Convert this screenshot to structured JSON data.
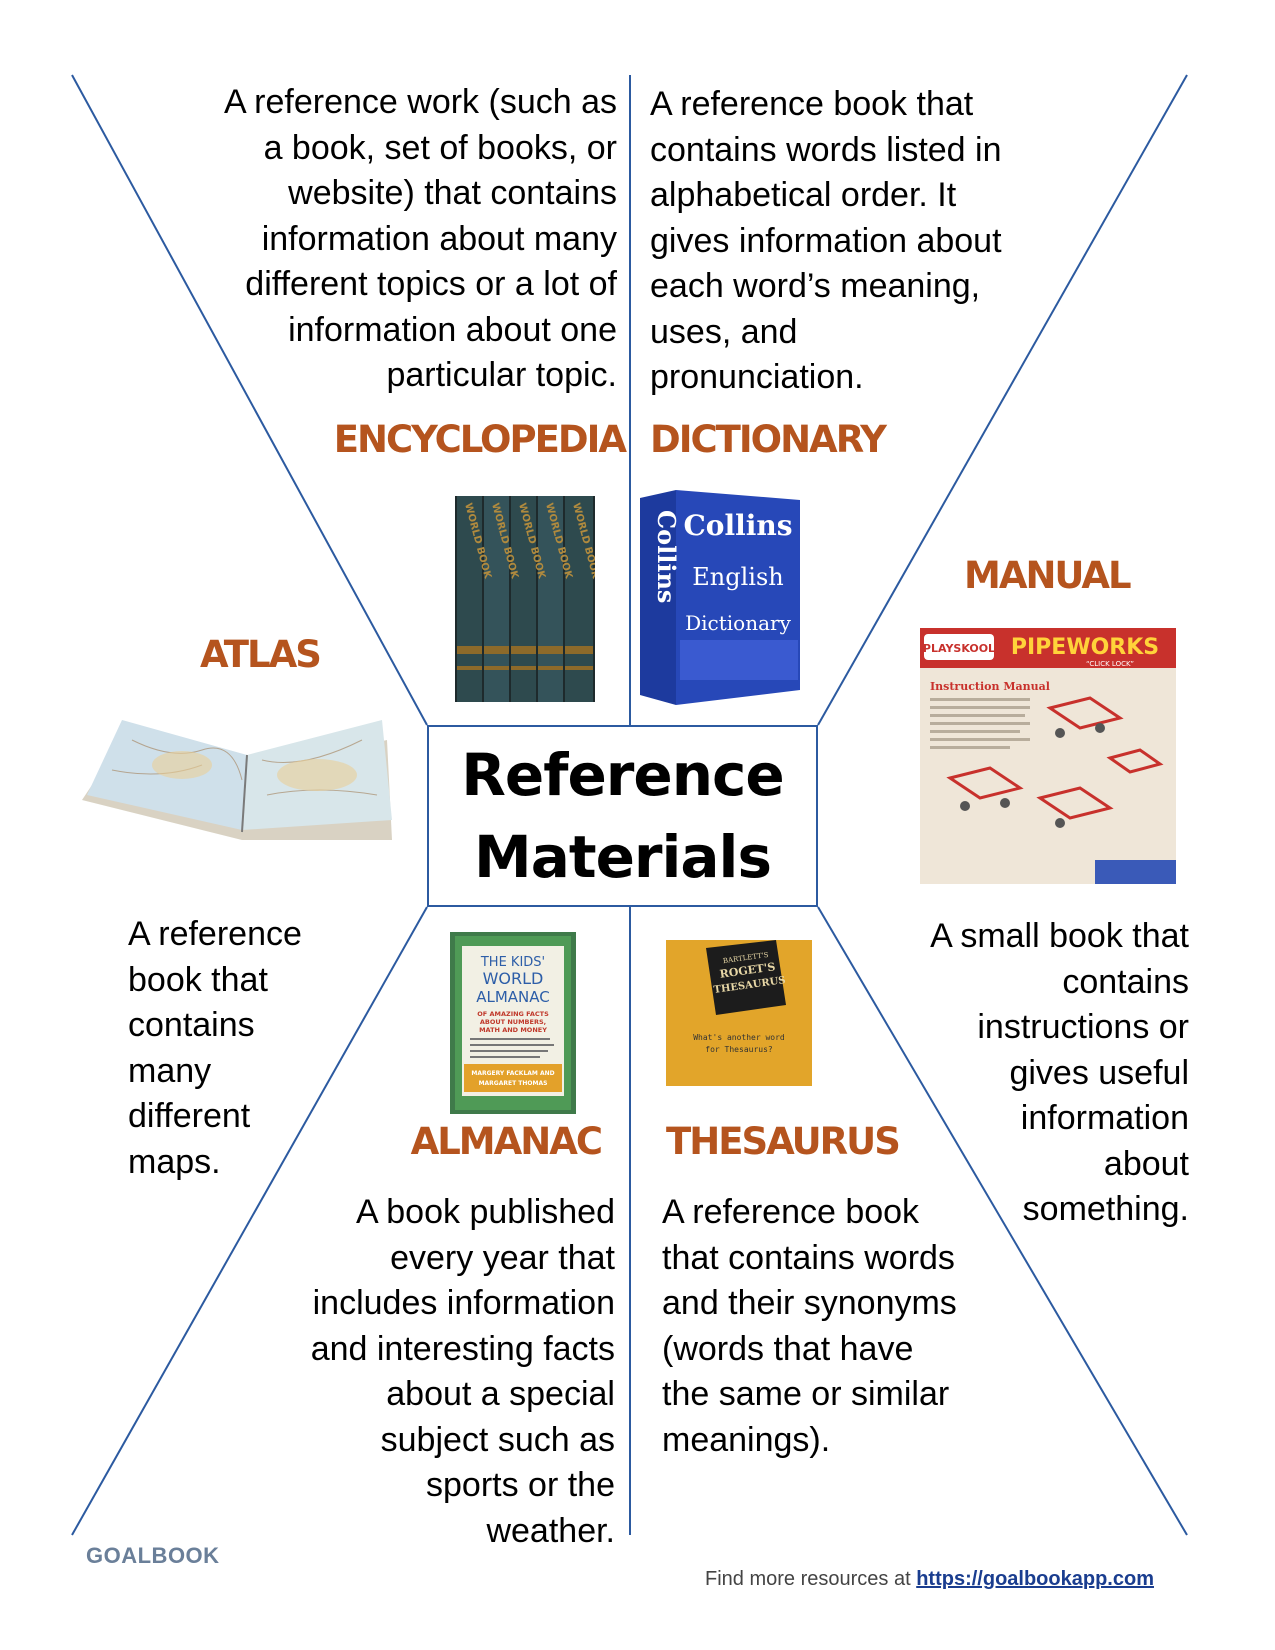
{
  "center": {
    "line1": "Reference",
    "line2": "Materials"
  },
  "sections": {
    "encyclopedia": {
      "title": "ENCYCLOPEDIA",
      "lines": [
        "A reference work (such as",
        "a book, set of books, or",
        "website) that contains",
        "information about many",
        "different topics or a lot of",
        "information about one",
        "particular topic."
      ]
    },
    "dictionary": {
      "title": "DICTIONARY",
      "lines": [
        "A reference book that",
        "contains words listed in",
        "alphabetical order. It",
        "gives information about",
        "each word’s meaning,",
        "uses, and",
        "pronunciation."
      ]
    },
    "atlas": {
      "title": "ATLAS",
      "lines": [
        "A reference",
        "book that",
        "contains",
        "many",
        "different",
        "maps."
      ]
    },
    "manual": {
      "title": "MANUAL",
      "lines": [
        "A small book that",
        "contains",
        "instructions or",
        "gives useful",
        "information",
        "about",
        "something."
      ]
    },
    "almanac": {
      "title": "ALMANAC",
      "lines": [
        "A book published",
        "every year that",
        "includes information",
        "and interesting facts",
        "about a special",
        "subject such as",
        "sports or the",
        "weather."
      ]
    },
    "thesaurus": {
      "title": "THESAURUS",
      "lines": [
        "A reference book",
        "that contains words",
        "and their synonyms",
        "(words that have",
        "the same or similar",
        "meanings)."
      ]
    }
  },
  "images": {
    "encyclopedia_spines": [
      "WORLD BOOK",
      "WORLD BOOK",
      "WORLD BOOK",
      "WORLD BOOK",
      "WORLD BOOK"
    ],
    "dictionary": {
      "spine": "Collins",
      "line1": "Collins",
      "line2": "English",
      "line3": "Dictionary"
    },
    "manual": {
      "brand": "PLAYSKOOL",
      "product": "PIPEWORKS",
      "tagline": "“CLICK LOCK”",
      "label": "Instruction Manual"
    },
    "almanac": {
      "line1": "THE KIDS'",
      "line2": "WORLD",
      "line3": "ALMANAC",
      "line4": "OF AMAZING FACTS",
      "line5": "ABOUT NUMBERS,",
      "line6": "MATH AND MONEY",
      "authors1": "MARGERY FACKLAM AND",
      "authors2": "MARGARET THOMAS"
    },
    "thesaurus": {
      "line1": "BARTLETT'S",
      "line2": "ROGET'S",
      "line3": "THESAURUS",
      "question1": "What's another word",
      "question2": "for Thesaurus?"
    }
  },
  "logo": "GOALBOOK",
  "footer": {
    "text": "Find more resources at ",
    "link": "https://goalbookapp.com"
  },
  "colors": {
    "heading": "#b5541e",
    "lines": "#2c5aa0",
    "link": "#1a3d8f"
  }
}
